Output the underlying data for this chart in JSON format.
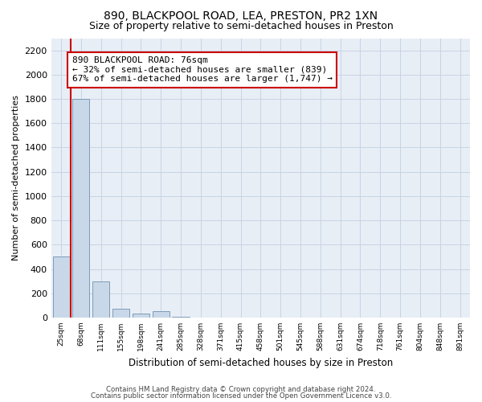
{
  "title1": "890, BLACKPOOL ROAD, LEA, PRESTON, PR2 1XN",
  "title2": "Size of property relative to semi-detached houses in Preston",
  "xlabel": "Distribution of semi-detached houses by size in Preston",
  "ylabel": "Number of semi-detached properties",
  "footer1": "Contains HM Land Registry data © Crown copyright and database right 2024.",
  "footer2": "Contains public sector information licensed under the Open Government Licence v3.0.",
  "annotation_title": "890 BLACKPOOL ROAD: 76sqm",
  "annotation_line1": "← 32% of semi-detached houses are smaller (839)",
  "annotation_line2": "67% of semi-detached houses are larger (1,747) →",
  "bar_labels": [
    "25sqm",
    "68sqm",
    "111sqm",
    "155sqm",
    "198sqm",
    "241sqm",
    "285sqm",
    "328sqm",
    "371sqm",
    "415sqm",
    "458sqm",
    "501sqm",
    "545sqm",
    "588sqm",
    "631sqm",
    "674sqm",
    "718sqm",
    "761sqm",
    "804sqm",
    "848sqm",
    "891sqm"
  ],
  "bar_values": [
    500,
    1800,
    300,
    70,
    35,
    55,
    5,
    0,
    0,
    0,
    0,
    0,
    0,
    0,
    0,
    0,
    0,
    0,
    0,
    0,
    0
  ],
  "bar_color": "#c8d8e8",
  "bar_edge_color": "#7090b0",
  "red_line_x": 0.5,
  "red_line_color": "#cc0000",
  "ylim": [
    0,
    2300
  ],
  "yticks": [
    0,
    200,
    400,
    600,
    800,
    1000,
    1200,
    1400,
    1600,
    1800,
    2000,
    2200
  ],
  "grid_color": "#c8d4e4",
  "background_color": "#e8eef6",
  "title1_fontsize": 10,
  "title2_fontsize": 9,
  "annotation_box_edge_color": "#cc0000",
  "annotation_fontsize": 8
}
